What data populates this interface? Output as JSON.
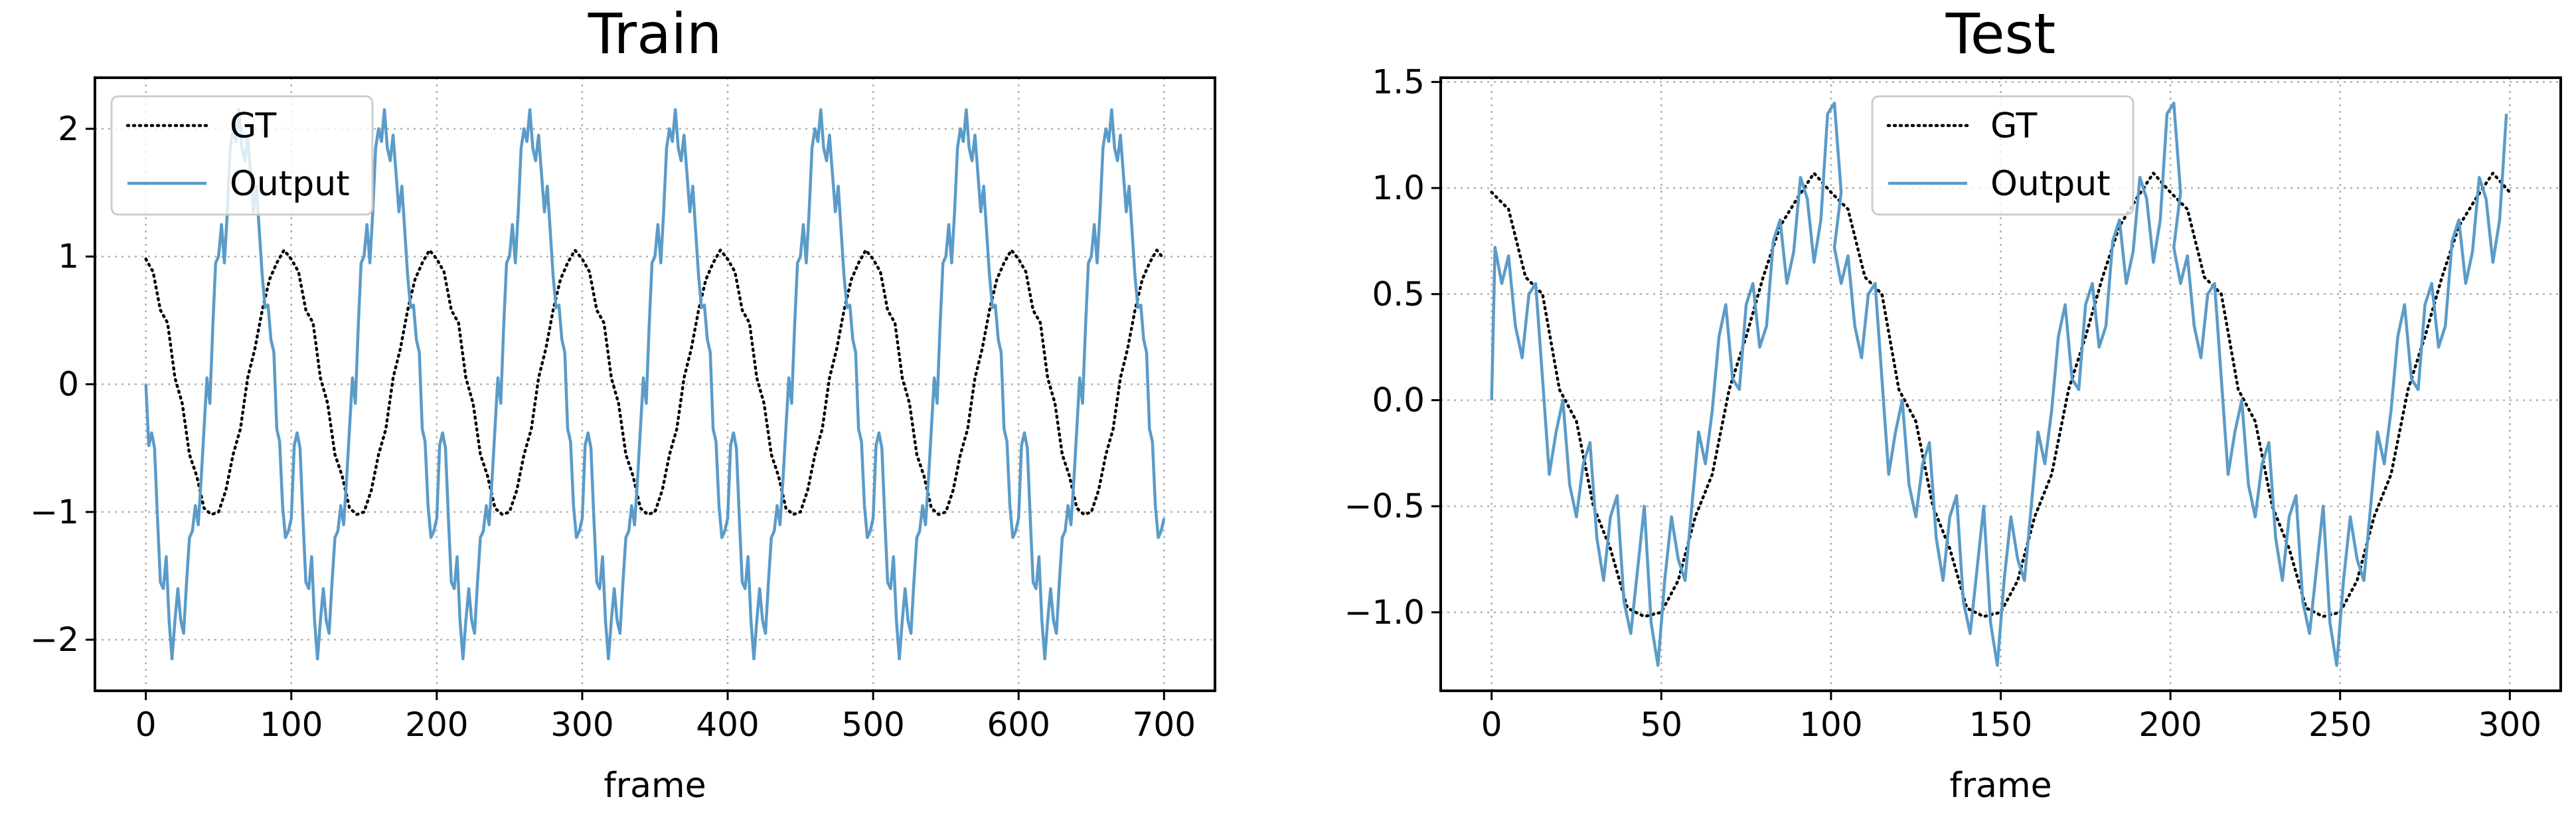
{
  "chart_data": [
    {
      "type": "line",
      "title": "Train",
      "xlabel": "frame",
      "ylabel": "",
      "xlim": [
        -35,
        735
      ],
      "ylim": [
        -2.4,
        2.4
      ],
      "xticks": [
        0,
        100,
        200,
        300,
        400,
        500,
        600,
        700
      ],
      "xtick_labels": [
        "0",
        "100",
        "200",
        "300",
        "400",
        "500",
        "600",
        "700"
      ],
      "yticks": [
        -2,
        -1,
        0,
        1,
        2
      ],
      "ytick_labels": [
        "−2",
        "−1",
        "0",
        "1",
        "2"
      ],
      "grid": true,
      "legend": {
        "position": "upper left",
        "entries": [
          "GT",
          "Output"
        ]
      },
      "period": 100,
      "series": [
        {
          "name": "GT",
          "style": "dotted",
          "color": "#000000",
          "x": [
            0,
            5,
            10,
            15,
            20,
            25,
            30,
            35,
            40,
            45,
            50,
            55,
            60,
            65,
            70,
            75,
            80,
            85,
            90,
            95,
            100
          ],
          "y": [
            0.98,
            0.88,
            0.58,
            0.48,
            0.05,
            -0.15,
            -0.55,
            -0.72,
            -0.97,
            -1.02,
            -1.0,
            -0.83,
            -0.55,
            -0.35,
            0.05,
            0.28,
            0.58,
            0.82,
            0.95,
            1.05,
            0.98
          ]
        },
        {
          "name": "Output",
          "style": "solid",
          "color": "#5b9bc8",
          "x": [
            0,
            2,
            4,
            6,
            8,
            10,
            12,
            14,
            16,
            18,
            20,
            22,
            24,
            26,
            28,
            30,
            32,
            34,
            36,
            38,
            40,
            42,
            44,
            46,
            48,
            50,
            52,
            54,
            56,
            58,
            60,
            62,
            64,
            66,
            68,
            70,
            72,
            74,
            76,
            78,
            80,
            82,
            84,
            86,
            88,
            90,
            92,
            94,
            96,
            98,
            100
          ],
          "y": [
            0.0,
            -0.48,
            -0.38,
            -0.5,
            -1.05,
            -1.55,
            -1.6,
            -1.35,
            -1.85,
            -2.15,
            -1.85,
            -1.6,
            -1.85,
            -1.95,
            -1.55,
            -1.2,
            -1.15,
            -0.95,
            -1.1,
            -0.75,
            -0.35,
            0.05,
            -0.15,
            0.45,
            0.95,
            1.0,
            1.25,
            0.95,
            1.35,
            1.85,
            2.0,
            1.9,
            2.15,
            1.85,
            1.75,
            1.95,
            1.65,
            1.35,
            1.55,
            1.2,
            0.85,
            0.6,
            0.62,
            0.35,
            0.25,
            -0.35,
            -0.45,
            -0.95,
            -1.2,
            -1.15,
            -1.05
          ]
        }
      ]
    },
    {
      "type": "line",
      "title": "Test",
      "xlabel": "frame",
      "ylabel": "",
      "xlim": [
        -15,
        315
      ],
      "ylim": [
        -1.37,
        1.52
      ],
      "xticks": [
        0,
        50,
        100,
        150,
        200,
        250,
        300
      ],
      "xtick_labels": [
        "0",
        "50",
        "100",
        "150",
        "200",
        "250",
        "300"
      ],
      "yticks": [
        -1.0,
        -0.5,
        0.0,
        0.5,
        1.0,
        1.5
      ],
      "ytick_labels": [
        "−1.0",
        "−0.5",
        "0.0",
        "0.5",
        "1.0",
        "1.5"
      ],
      "grid": true,
      "legend": {
        "position": "upper center",
        "entries": [
          "GT",
          "Output"
        ]
      },
      "period": 100,
      "series": [
        {
          "name": "GT",
          "style": "dotted",
          "color": "#000000",
          "x": [
            0,
            5,
            10,
            15,
            20,
            25,
            30,
            35,
            40,
            45,
            50,
            55,
            60,
            65,
            70,
            75,
            80,
            85,
            90,
            95,
            100
          ],
          "y": [
            0.98,
            0.9,
            0.58,
            0.5,
            0.05,
            -0.1,
            -0.5,
            -0.7,
            -0.98,
            -1.02,
            -1.0,
            -0.85,
            -0.55,
            -0.35,
            0.05,
            0.3,
            0.58,
            0.82,
            0.95,
            1.07,
            0.98
          ]
        },
        {
          "name": "Output",
          "style": "solid",
          "color": "#5b9bc8",
          "x": [
            0,
            1,
            3,
            5,
            7,
            9,
            11,
            13,
            15,
            17,
            19,
            21,
            23,
            25,
            27,
            29,
            31,
            33,
            35,
            37,
            39,
            41,
            43,
            45,
            47,
            49,
            51,
            53,
            55,
            57,
            59,
            61,
            63,
            65,
            67,
            69,
            71,
            73,
            75,
            77,
            79,
            81,
            83,
            85,
            87,
            89,
            91,
            93,
            95,
            97,
            99,
            101,
            103
          ],
          "y": [
            0.0,
            0.72,
            0.55,
            0.68,
            0.35,
            0.2,
            0.5,
            0.55,
            0.1,
            -0.35,
            -0.15,
            0.0,
            -0.4,
            -0.55,
            -0.3,
            -0.2,
            -0.65,
            -0.85,
            -0.55,
            -0.45,
            -0.95,
            -1.1,
            -0.8,
            -0.5,
            -1.05,
            -1.25,
            -0.85,
            -0.55,
            -0.75,
            -0.85,
            -0.5,
            -0.15,
            -0.3,
            -0.05,
            0.3,
            0.45,
            0.1,
            0.05,
            0.45,
            0.55,
            0.25,
            0.35,
            0.75,
            0.85,
            0.55,
            0.7,
            1.05,
            0.95,
            0.65,
            0.85,
            1.35,
            1.4,
            0.98
          ]
        }
      ]
    }
  ]
}
